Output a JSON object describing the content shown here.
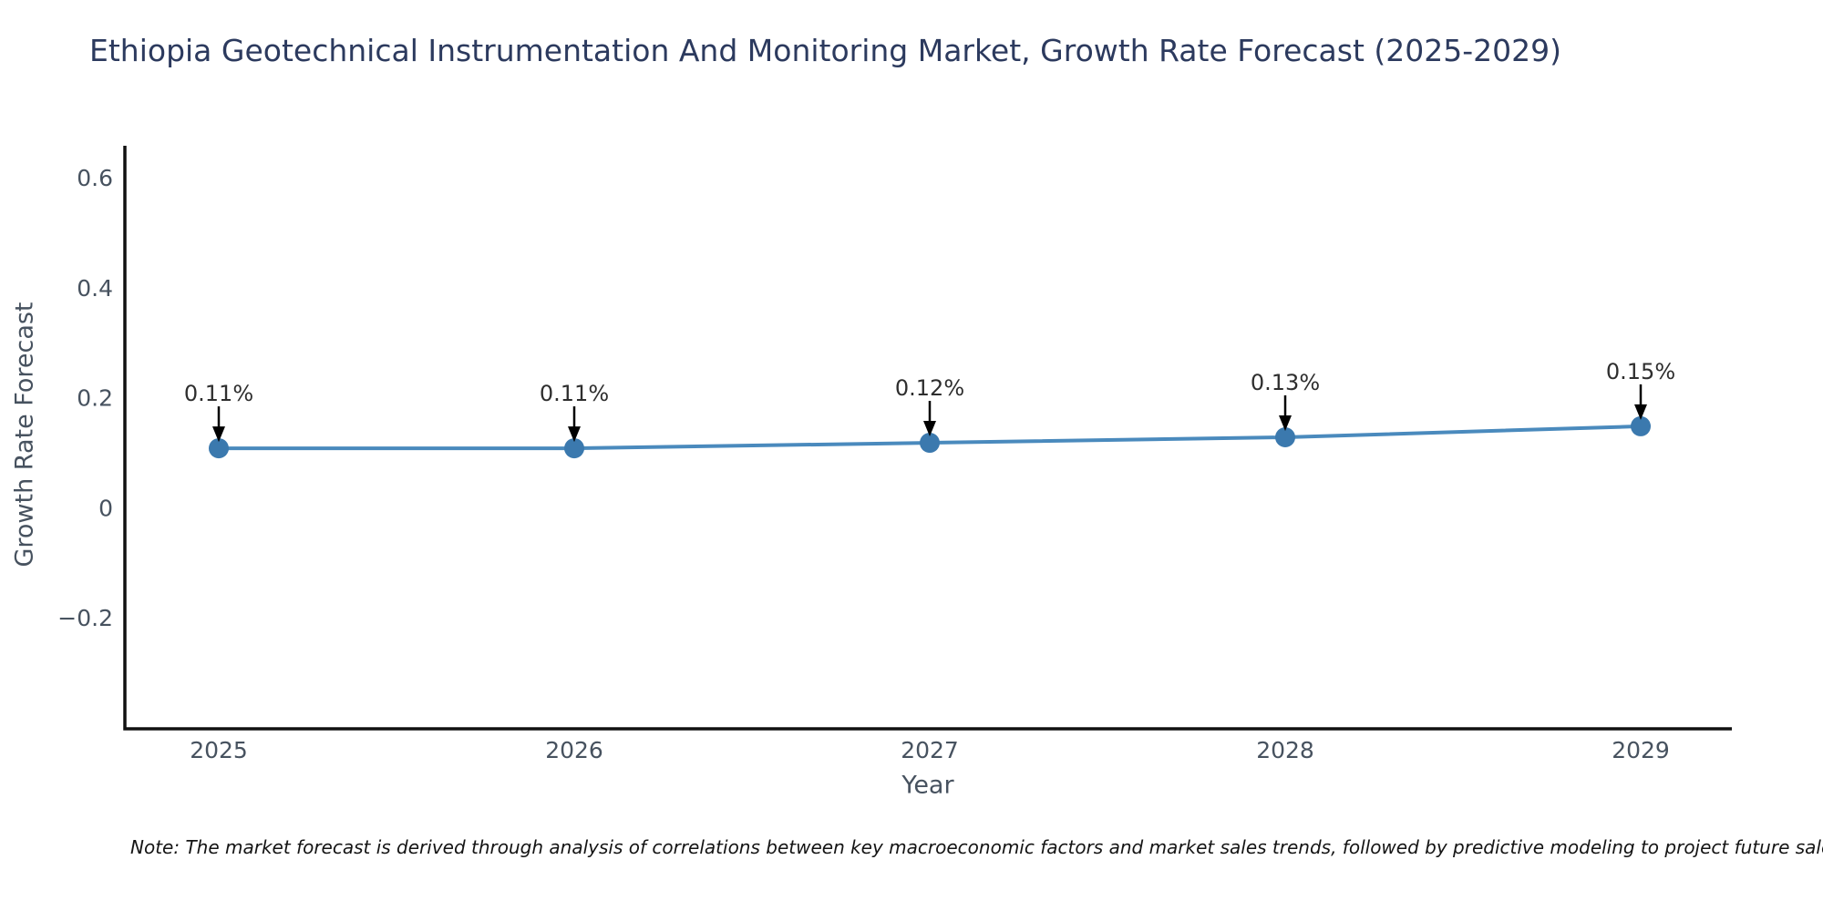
{
  "page": {
    "note": "Note: The market forecast is derived through analysis of correlations between key macroeconomic factors and market sales trends, followed by predictive modeling to project future sales."
  },
  "chart_data": {
    "type": "line",
    "title": "Ethiopia Geotechnical Instrumentation And Monitoring Market, Growth Rate Forecast (2025-2029)",
    "xlabel": "Year",
    "ylabel": "Growth Rate Forecast",
    "categories": [
      "2025",
      "2026",
      "2027",
      "2028",
      "2029"
    ],
    "series": [
      {
        "name": "Growth Rate Forecast",
        "values": [
          0.11,
          0.11,
          0.12,
          0.13,
          0.15
        ]
      }
    ],
    "point_labels": [
      "0.11%",
      "0.11%",
      "0.12%",
      "0.13%",
      "0.15%"
    ],
    "ylim": [
      -0.4,
      0.66
    ],
    "yticks": [
      -0.2,
      0,
      0.2,
      0.4,
      0.6
    ],
    "grid": false,
    "legend_position": "none",
    "line_color": "#4a8abd",
    "marker_color": "#3b79ae",
    "axis_color": "#111111",
    "annotation_arrow_color": "#000000"
  }
}
